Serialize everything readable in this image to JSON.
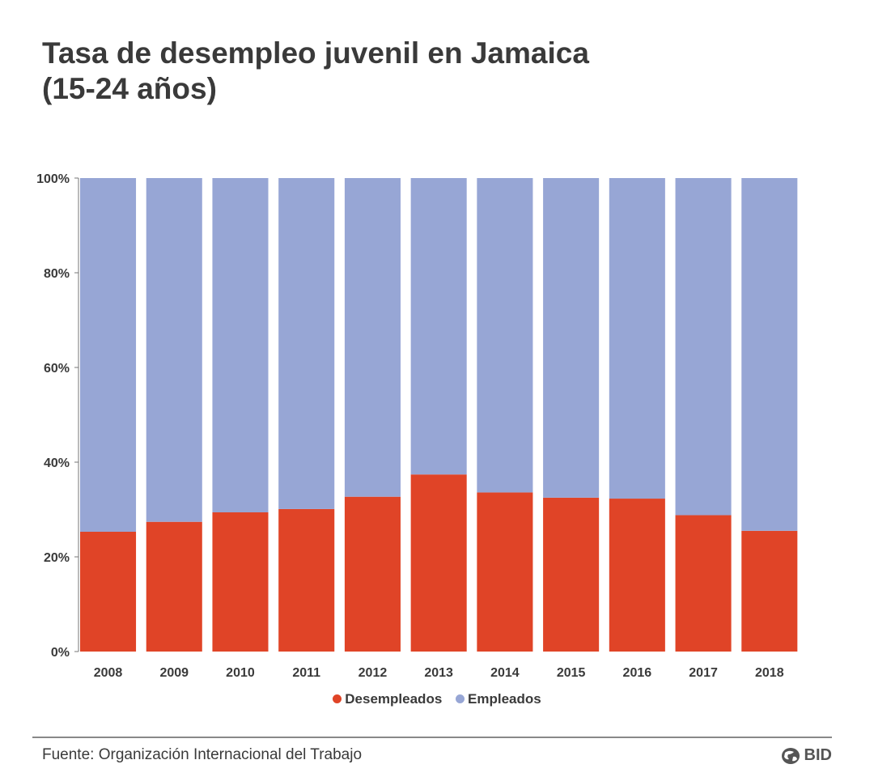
{
  "title_line1": "Tasa de desempleo juvenil en Jamaica",
  "title_line2": "(15-24 años)",
  "source": "Fuente: Organización Internacional del Trabajo",
  "logo_text": "BID",
  "colors": {
    "desempleados": "#e04427",
    "empleados": "#97a6d5"
  },
  "chart_data": {
    "type": "bar",
    "stacked": true,
    "title": "Tasa de desempleo juvenil en Jamaica (15-24 años)",
    "categories": [
      "2008",
      "2009",
      "2010",
      "2011",
      "2012",
      "2013",
      "2014",
      "2015",
      "2016",
      "2017",
      "2018"
    ],
    "series": [
      {
        "name": "Desempleados",
        "values": [
          25.3,
          27.4,
          29.4,
          30.1,
          32.7,
          37.4,
          33.6,
          32.5,
          32.3,
          28.8,
          25.5
        ]
      },
      {
        "name": "Empleados",
        "values": [
          74.7,
          72.6,
          70.6,
          69.9,
          67.3,
          62.6,
          66.4,
          67.5,
          67.7,
          71.2,
          74.5
        ]
      }
    ],
    "yticks": [
      "0%",
      "20%",
      "40%",
      "60%",
      "80%",
      "100%"
    ],
    "ylim": [
      0,
      100
    ],
    "xlabel": "",
    "ylabel": "",
    "legend": "bottom-center"
  }
}
